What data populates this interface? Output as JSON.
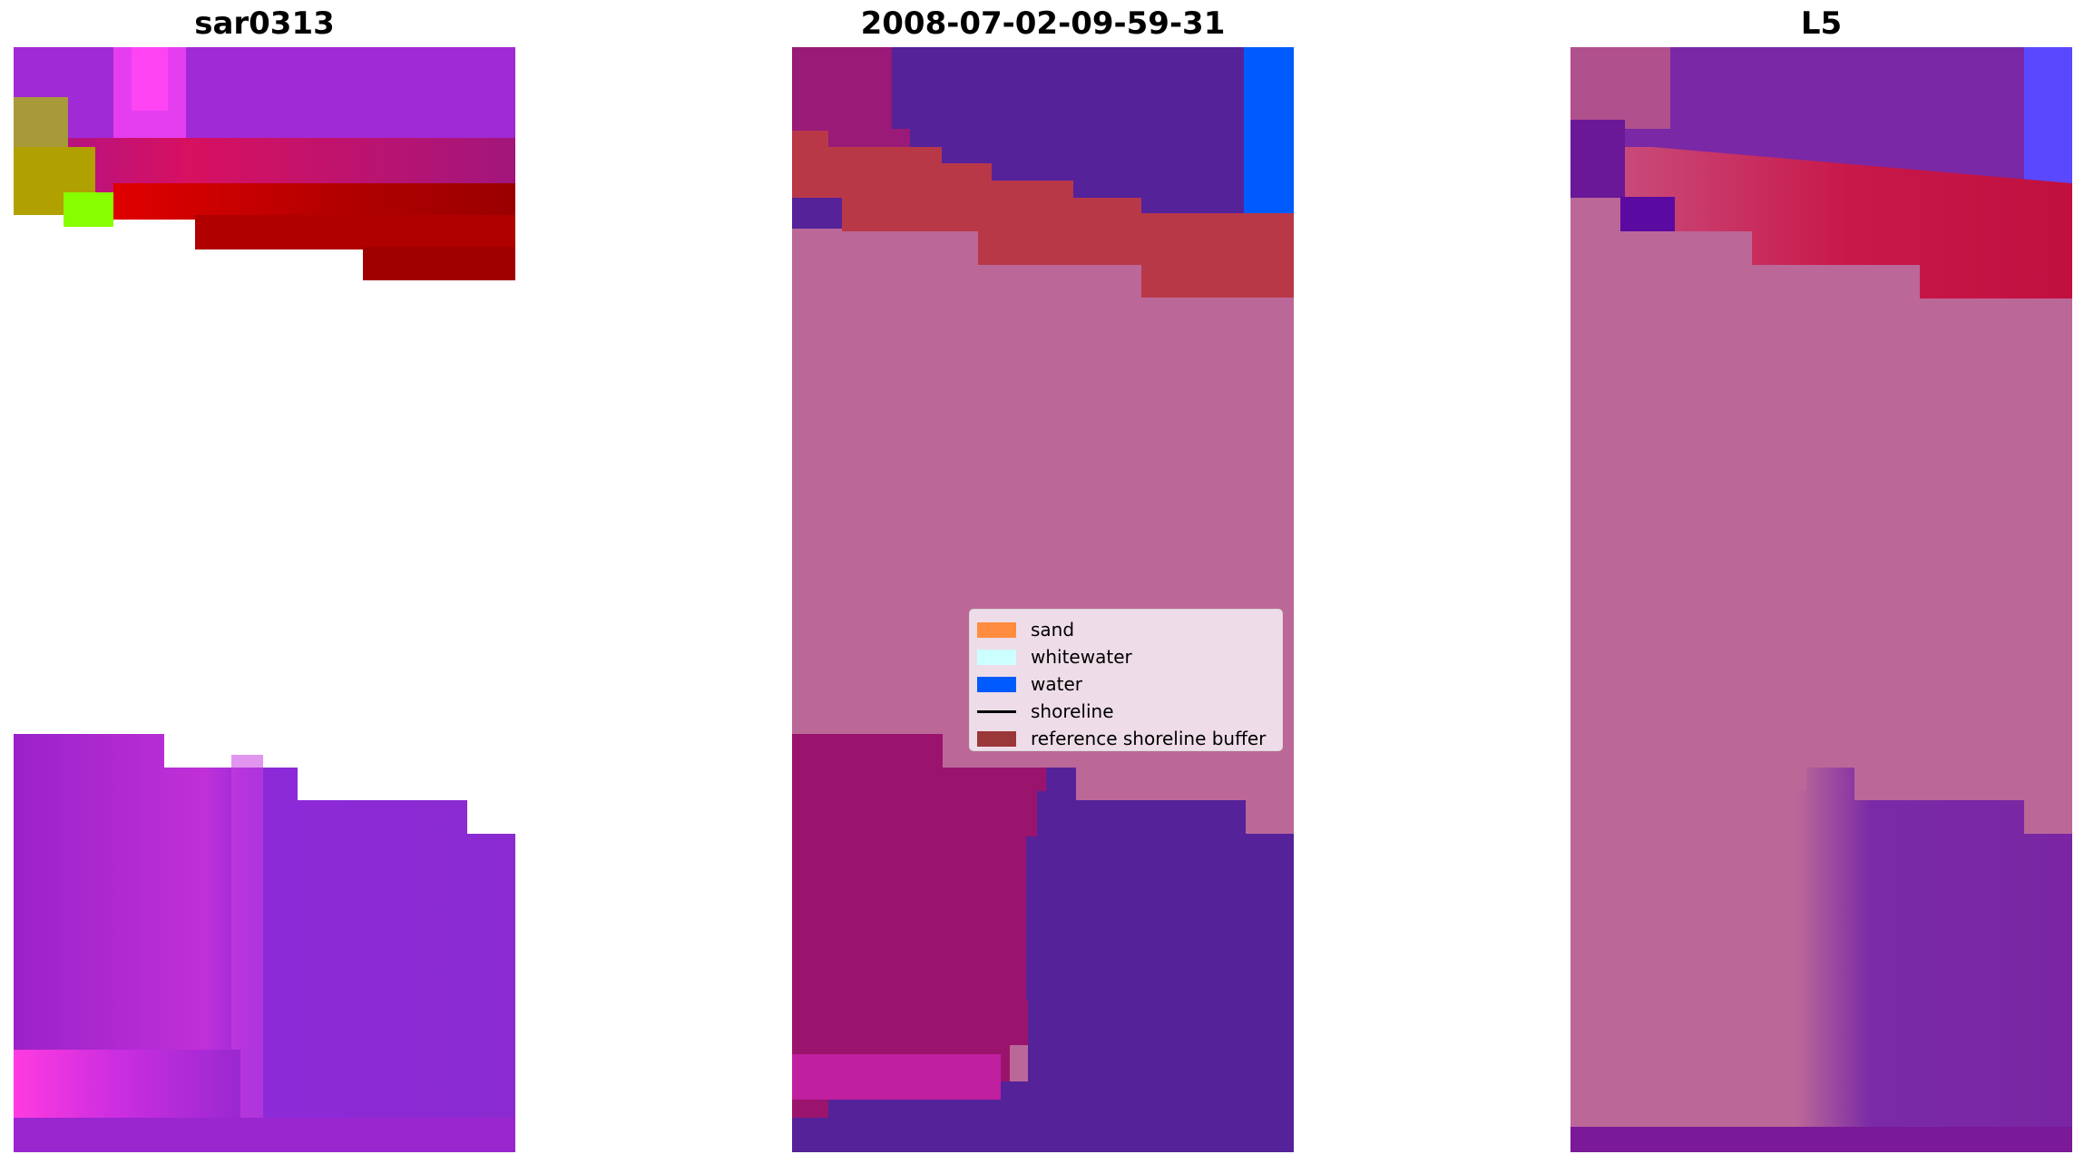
{
  "panels": {
    "left_title": "sar0313",
    "middle_title": "2008-07-02-09-59-31",
    "right_title": "L5"
  },
  "legend": {
    "items": [
      {
        "label": "sand",
        "kind": "patch",
        "color": "#ff8c3f"
      },
      {
        "label": "whitewater",
        "kind": "patch",
        "color": "#ccffff"
      },
      {
        "label": "water",
        "kind": "patch",
        "color": "#005bff"
      },
      {
        "label": "shoreline",
        "kind": "line",
        "color": "#000000"
      },
      {
        "label": "reference shoreline buffer",
        "kind": "patch",
        "color": "#8b1a1a"
      }
    ]
  }
}
